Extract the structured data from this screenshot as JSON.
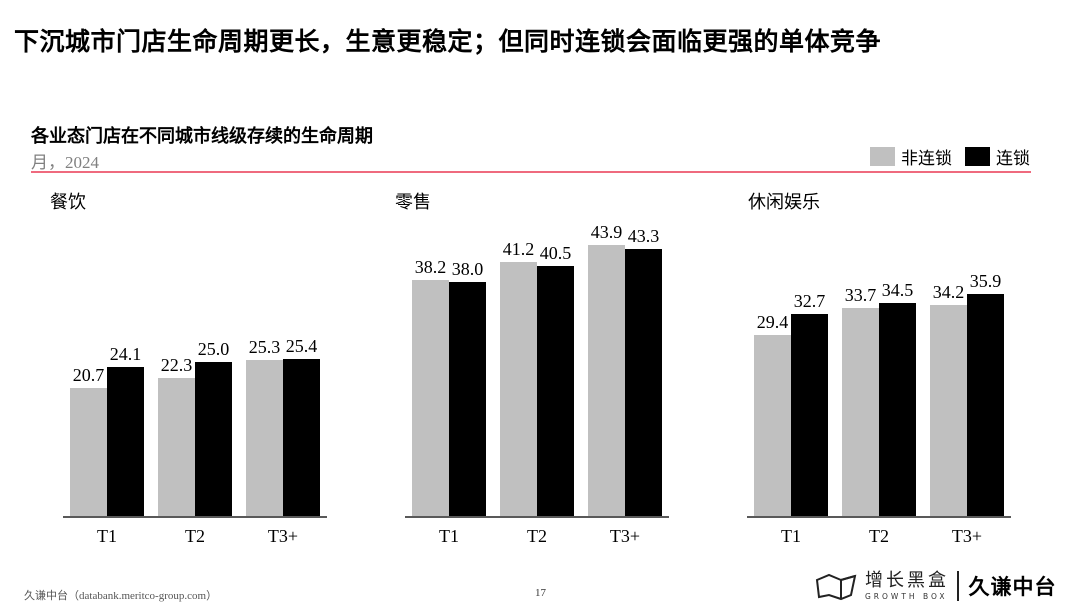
{
  "headline": "下沉城市门店生命周期更长，生意更稳定；但同时连锁会面临更强的单体竞争",
  "chart_title": "各业态门店在不同城市线级存续的生命周期",
  "chart_subtitle": "月，2024",
  "legend": [
    {
      "label": "非连锁",
      "color": "#c0c0c0"
    },
    {
      "label": "连锁",
      "color": "#000000"
    }
  ],
  "colors": {
    "non_chain": "#c0c0c0",
    "chain": "#000000",
    "rule": "#ef6a7e",
    "axis": "#595959"
  },
  "panels": [
    {
      "title": "餐饮"
    },
    {
      "title": "零售"
    },
    {
      "title": "休闲娱乐"
    }
  ],
  "chart_data": [
    {
      "type": "bar",
      "title": "餐饮",
      "categories": [
        "T1",
        "T2",
        "T3+"
      ],
      "series": [
        {
          "name": "非连锁",
          "values": [
            20.7,
            22.3,
            25.3
          ]
        },
        {
          "name": "连锁",
          "values": [
            24.1,
            25.0,
            25.4
          ]
        }
      ],
      "xlabel": "",
      "ylabel": "月",
      "ylim": [
        0,
        50
      ],
      "grid": false,
      "legend_position": "top-right"
    },
    {
      "type": "bar",
      "title": "零售",
      "categories": [
        "T1",
        "T2",
        "T3+"
      ],
      "series": [
        {
          "name": "非连锁",
          "values": [
            38.2,
            41.2,
            43.9
          ]
        },
        {
          "name": "连锁",
          "values": [
            38.0,
            40.5,
            43.3
          ]
        }
      ],
      "xlabel": "",
      "ylabel": "月",
      "ylim": [
        0,
        50
      ],
      "grid": false,
      "legend_position": "top-right"
    },
    {
      "type": "bar",
      "title": "休闲娱乐",
      "categories": [
        "T1",
        "T2",
        "T3+"
      ],
      "series": [
        {
          "name": "非连锁",
          "values": [
            29.4,
            33.7,
            34.2
          ]
        },
        {
          "name": "连锁",
          "values": [
            32.7,
            34.5,
            35.9
          ]
        }
      ],
      "xlabel": "",
      "ylabel": "月",
      "ylim": [
        0,
        50
      ],
      "grid": false,
      "legend_position": "top-right"
    }
  ],
  "footer": {
    "source": "久谦中台（databank.meritco-group.com）",
    "page": "17",
    "brand_cn": "增长黑盒",
    "brand_en": "GROWTH BOX",
    "partner": "久谦中台"
  }
}
